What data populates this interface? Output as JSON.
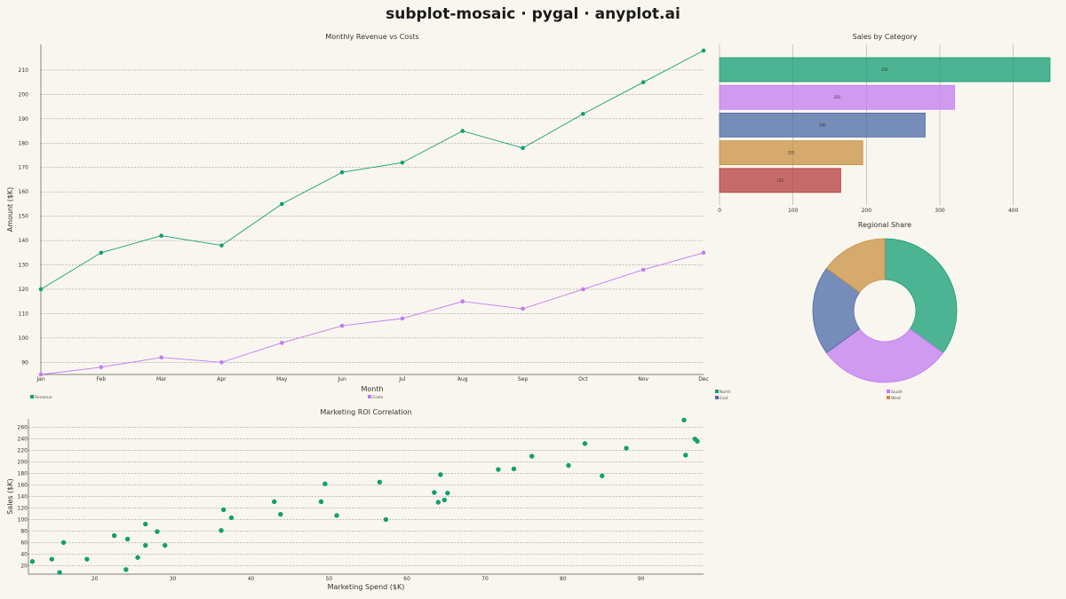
{
  "title": "subplot-mosaic · pygal · anyplot.ai",
  "colors": {
    "background": "#f9f6ef",
    "revenue": "#129e73",
    "costs": "#c27bf0",
    "north": "#129e73",
    "south": "#c27bf0",
    "east": "#4a6aa8",
    "west": "#c89040",
    "red": "#b43c3c"
  },
  "chart_data": [
    {
      "type": "line",
      "title": "Monthly Revenue vs Costs",
      "xlabel": "Month",
      "ylabel": "Amount ($K)",
      "categories": [
        "Jan",
        "Feb",
        "Mar",
        "Apr",
        "May",
        "Jun",
        "Jul",
        "Aug",
        "Sep",
        "Oct",
        "Nov",
        "Dec"
      ],
      "ylim": [
        85,
        218
      ],
      "yticks": [
        90,
        100,
        110,
        120,
        130,
        140,
        150,
        160,
        170,
        180,
        190,
        200,
        210
      ],
      "series": [
        {
          "name": "Revenue",
          "values": [
            120,
            135,
            142,
            138,
            155,
            168,
            172,
            185,
            178,
            192,
            205,
            218
          ]
        },
        {
          "name": "Costs",
          "values": [
            85,
            88,
            92,
            90,
            98,
            105,
            108,
            115,
            112,
            120,
            128,
            135
          ]
        }
      ],
      "legend": "bottom"
    },
    {
      "type": "bar",
      "orientation": "horizontal",
      "title": "Sales by Category",
      "values": [
        450,
        320,
        280,
        195,
        165
      ],
      "data_labels": [
        "450",
        "320",
        "280",
        "195",
        "165"
      ],
      "xlim": [
        0,
        450
      ],
      "xticks": [
        0,
        100,
        200,
        300,
        400
      ],
      "bar_colors": [
        "#129e73",
        "#c27bf0",
        "#4a6aa8",
        "#c89040",
        "#b43c3c"
      ]
    },
    {
      "type": "pie",
      "title": "Regional Share",
      "donut": true,
      "slices": [
        {
          "name": "North",
          "value": 35
        },
        {
          "name": "South",
          "value": 30
        },
        {
          "name": "East",
          "value": 20
        },
        {
          "name": "West",
          "value": 15
        }
      ],
      "legend": "bottom"
    },
    {
      "type": "scatter",
      "title": "Marketing ROI Correlation",
      "xlabel": "Marketing Spend ($K)",
      "ylabel": "Sales ($K)",
      "xlim": [
        11.5,
        98
      ],
      "ylim": [
        5,
        275
      ],
      "xticks": [
        20,
        30,
        40,
        50,
        60,
        70,
        80,
        90
      ],
      "yticks": [
        20,
        40,
        60,
        80,
        100,
        120,
        140,
        160,
        180,
        200,
        220,
        240,
        260
      ],
      "x": [
        12,
        14.5,
        15.5,
        16,
        19,
        22.5,
        24,
        24.2,
        25.5,
        26.5,
        26.5,
        28,
        29,
        36.2,
        36.5,
        37.5,
        43,
        43.8,
        49,
        49.5,
        51,
        56.5,
        57.3,
        63.5,
        64,
        64.3,
        64.8,
        65.2,
        71.7,
        73.7,
        76,
        80.7,
        82.8,
        85,
        88.1,
        95.5,
        95.7,
        96.9,
        97.2
      ],
      "y": [
        27,
        31,
        8,
        60,
        31,
        72,
        13,
        66,
        34,
        92,
        55,
        79,
        55,
        81,
        117,
        103,
        131,
        109,
        131,
        162,
        107,
        165,
        100,
        147,
        130,
        178,
        134,
        146,
        187,
        188,
        210,
        194,
        232,
        176,
        224,
        273,
        212,
        240,
        236
      ]
    }
  ]
}
